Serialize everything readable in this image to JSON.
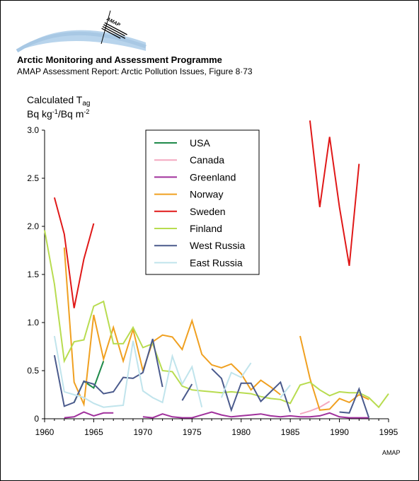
{
  "header": {
    "title": "Arctic Monitoring and Assessment Programme",
    "subtitle": "AMAP Assessment Report: Arctic Pollution Issues, Figure 8·73"
  },
  "logo": {
    "text": "AMAP"
  },
  "credit": "AMAP",
  "chart_data": {
    "type": "line",
    "ylabel_main": "Calculated T",
    "ylabel_sub": "ag",
    "ylabel_units": [
      "Bq kg",
      "-1",
      "/Bq m",
      "-2"
    ],
    "xlim": [
      1960,
      1995
    ],
    "ylim": [
      0,
      3.0
    ],
    "x_ticks": [
      1960,
      1965,
      1970,
      1975,
      1980,
      1985,
      1990,
      1995
    ],
    "y_ticks": [
      0,
      0.5,
      1.0,
      1.5,
      2.0,
      2.5,
      3.0
    ],
    "x_tick_labels": [
      "1960",
      "1965",
      "1970",
      "1975",
      "1980",
      "1985",
      "1990",
      "1995"
    ],
    "y_tick_labels": [
      "0",
      "0.5",
      "1.0",
      "1.5",
      "2.0",
      "2.5",
      "3.0"
    ],
    "grid": false,
    "legend_position": "top-center",
    "series": [
      {
        "name": "USA",
        "color": "#1e8a4a",
        "segments": [
          [
            [
              1963,
              0.17
            ],
            [
              1964,
              0.39
            ],
            [
              1965,
              0.32
            ],
            [
              1966,
              0.6
            ]
          ]
        ]
      },
      {
        "name": "Canada",
        "color": "#f4a8c0",
        "segments": [
          [
            [
              1986,
              0.05
            ],
            [
              1987,
              0.08
            ],
            [
              1988,
              0.12
            ],
            [
              1989,
              0.18
            ]
          ]
        ]
      },
      {
        "name": "Greenland",
        "color": "#a0309c",
        "segments": [
          [
            [
              1962,
              0.01
            ],
            [
              1963,
              0.02
            ],
            [
              1964,
              0.07
            ],
            [
              1965,
              0.03
            ],
            [
              1966,
              0.06
            ],
            [
              1967,
              0.06
            ]
          ],
          [
            [
              1970,
              0.02
            ],
            [
              1971,
              0.01
            ],
            [
              1972,
              0.05
            ],
            [
              1973,
              0.02
            ],
            [
              1974,
              0.01
            ],
            [
              1975,
              0.01
            ],
            [
              1976,
              0.04
            ],
            [
              1977,
              0.07
            ],
            [
              1978,
              0.04
            ],
            [
              1979,
              0.02
            ],
            [
              1980,
              0.03
            ],
            [
              1981,
              0.04
            ],
            [
              1982,
              0.05
            ],
            [
              1983,
              0.03
            ],
            [
              1984,
              0.02
            ],
            [
              1985,
              0.03
            ],
            [
              1986,
              0.02
            ],
            [
              1987,
              0.02
            ],
            [
              1988,
              0.03
            ],
            [
              1989,
              0.06
            ],
            [
              1990,
              0.02
            ],
            [
              1991,
              0.01
            ],
            [
              1992,
              0.01
            ],
            [
              1993,
              0.01
            ]
          ]
        ]
      },
      {
        "name": "Norway",
        "color": "#f0a020",
        "segments": [
          [
            [
              1962,
              1.78
            ],
            [
              1963,
              0.38
            ],
            [
              1964,
              0.15
            ],
            [
              1965,
              1.08
            ],
            [
              1966,
              0.62
            ],
            [
              1967,
              0.95
            ],
            [
              1968,
              0.6
            ],
            [
              1969,
              0.93
            ],
            [
              1970,
              0.5
            ],
            [
              1971,
              0.8
            ],
            [
              1972,
              0.87
            ],
            [
              1973,
              0.85
            ],
            [
              1974,
              0.72
            ],
            [
              1975,
              1.02
            ],
            [
              1976,
              0.67
            ],
            [
              1977,
              0.56
            ],
            [
              1978,
              0.53
            ],
            [
              1979,
              0.57
            ],
            [
              1980,
              0.47
            ],
            [
              1981,
              0.3
            ],
            [
              1982,
              0.4
            ],
            [
              1983,
              0.33
            ],
            [
              1984,
              0.25
            ]
          ],
          [
            [
              1986,
              0.86
            ],
            [
              1987,
              0.42
            ],
            [
              1988,
              0.09
            ],
            [
              1989,
              0.1
            ],
            [
              1990,
              0.21
            ],
            [
              1991,
              0.17
            ],
            [
              1992,
              0.25
            ],
            [
              1993,
              0.2
            ]
          ]
        ]
      },
      {
        "name": "Sweden",
        "color": "#e01818",
        "segments": [
          [
            [
              1961,
              2.3
            ],
            [
              1962,
              1.92
            ],
            [
              1963,
              1.15
            ],
            [
              1964,
              1.66
            ],
            [
              1965,
              2.03
            ]
          ],
          [
            [
              1987,
              3.1
            ],
            [
              1988,
              2.2
            ],
            [
              1989,
              2.93
            ],
            [
              1990,
              2.2
            ],
            [
              1991,
              1.59
            ],
            [
              1992,
              2.65
            ]
          ]
        ]
      },
      {
        "name": "Finland",
        "color": "#b8dc50",
        "segments": [
          [
            [
              1960,
              1.96
            ],
            [
              1961,
              1.4
            ],
            [
              1962,
              0.6
            ],
            [
              1963,
              0.8
            ],
            [
              1964,
              0.82
            ],
            [
              1965,
              1.17
            ],
            [
              1966,
              1.22
            ],
            [
              1967,
              0.78
            ],
            [
              1968,
              0.78
            ],
            [
              1969,
              0.95
            ],
            [
              1970,
              0.74
            ],
            [
              1971,
              0.78
            ],
            [
              1972,
              0.5
            ],
            [
              1973,
              0.49
            ],
            [
              1974,
              0.34
            ],
            [
              1975,
              0.3
            ],
            [
              1976,
              0.29
            ],
            [
              1977,
              0.28
            ],
            [
              1978,
              0.27
            ],
            [
              1979,
              0.28
            ],
            [
              1980,
              0.27
            ],
            [
              1981,
              0.26
            ],
            [
              1982,
              0.23
            ],
            [
              1983,
              0.21
            ],
            [
              1984,
              0.2
            ],
            [
              1985,
              0.16
            ],
            [
              1986,
              0.35
            ],
            [
              1987,
              0.38
            ],
            [
              1988,
              0.3
            ],
            [
              1989,
              0.24
            ],
            [
              1990,
              0.28
            ],
            [
              1991,
              0.27
            ],
            [
              1992,
              0.27
            ],
            [
              1993,
              0.22
            ],
            [
              1994,
              0.12
            ],
            [
              1995,
              0.26
            ]
          ]
        ]
      },
      {
        "name": "West Russia",
        "color": "#4a5a8c",
        "segments": [
          [
            [
              1961,
              0.66
            ],
            [
              1962,
              0.13
            ],
            [
              1963,
              0.17
            ],
            [
              1964,
              0.39
            ],
            [
              1965,
              0.36
            ],
            [
              1966,
              0.26
            ],
            [
              1967,
              0.28
            ],
            [
              1968,
              0.43
            ],
            [
              1969,
              0.42
            ],
            [
              1970,
              0.48
            ],
            [
              1971,
              0.83
            ],
            [
              1972,
              0.33
            ]
          ],
          [
            [
              1974,
              0.19
            ],
            [
              1975,
              0.36
            ]
          ],
          [
            [
              1977,
              0.52
            ],
            [
              1978,
              0.42
            ],
            [
              1979,
              0.09
            ],
            [
              1980,
              0.37
            ],
            [
              1981,
              0.37
            ],
            [
              1982,
              0.18
            ],
            [
              1983,
              0.28
            ],
            [
              1984,
              0.38
            ],
            [
              1985,
              0.07
            ]
          ],
          [
            [
              1990,
              0.07
            ],
            [
              1991,
              0.06
            ],
            [
              1992,
              0.31
            ],
            [
              1993,
              0.01
            ]
          ]
        ]
      },
      {
        "name": "East Russia",
        "color": "#c0e4ec",
        "segments": [
          [
            [
              1961,
              0.86
            ],
            [
              1962,
              0.28
            ],
            [
              1963,
              0.25
            ],
            [
              1964,
              0.22
            ],
            [
              1965,
              0.16
            ],
            [
              1966,
              0.12
            ],
            [
              1967,
              0.13
            ],
            [
              1968,
              0.14
            ],
            [
              1969,
              0.81
            ],
            [
              1970,
              0.29
            ],
            [
              1971,
              0.22
            ],
            [
              1972,
              0.17
            ],
            [
              1973,
              0.65
            ],
            [
              1974,
              0.36
            ],
            [
              1975,
              0.54
            ],
            [
              1976,
              0.12
            ]
          ],
          [
            [
              1978,
              0.22
            ],
            [
              1979,
              0.48
            ],
            [
              1980,
              0.43
            ],
            [
              1981,
              0.58
            ]
          ],
          [
            [
              1984,
              0.22
            ],
            [
              1985,
              0.35
            ]
          ]
        ]
      }
    ]
  }
}
